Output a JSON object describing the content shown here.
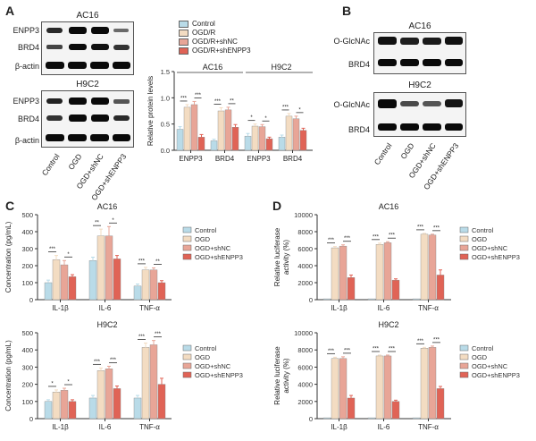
{
  "panels": {
    "A": "A",
    "B": "B",
    "C": "C",
    "D": "D"
  },
  "colors": {
    "control": "#b9dbe8",
    "ogd": "#f3dcc2",
    "shnc": "#e8a597",
    "shenpp3": "#e06356",
    "band": "#0a0a0a"
  },
  "legend": [
    "Control",
    "OGD/R",
    "OGD/R+shNC",
    "OGD/R+shENPP3"
  ],
  "legend_cd": [
    "Control",
    "OGD",
    "OGD+shNC",
    "OGD+shENPP3"
  ],
  "blotA": {
    "groups": [
      {
        "title": "AC16",
        "rows": [
          "ENPP3",
          "BRD4",
          "β-actin"
        ]
      },
      {
        "title": "H9C2",
        "rows": [
          "ENPP3",
          "BRD4",
          "β-actin"
        ]
      }
    ],
    "lanes": [
      "Control",
      "OGD",
      "OGD+shNC",
      "OGD+shENPP3"
    ]
  },
  "blotB": {
    "groups": [
      {
        "title": "AC16",
        "rows": [
          "O-GlcNAc",
          "BRD4"
        ]
      },
      {
        "title": "H9C2",
        "rows": [
          "O-GlcNAc",
          "BRD4"
        ]
      }
    ],
    "lanes": [
      "Control",
      "OGD",
      "OGD+shNC",
      "OGD+shENPP3"
    ]
  },
  "chart_data": [
    {
      "id": "A-bar",
      "type": "bar",
      "ylabel": "Relative protein levels",
      "ylim": [
        0,
        1.5
      ],
      "yticks": [
        "0.0",
        "0.5",
        "1.0",
        "1.5"
      ],
      "categories": [
        "ENPP3",
        "BRD4",
        "ENPP3",
        "BRD4"
      ],
      "group_labels": [
        "AC16",
        "H9C2"
      ],
      "series": [
        {
          "name": "Control",
          "values": [
            0.4,
            0.18,
            0.27,
            0.25
          ],
          "errors": [
            0.05,
            0.03,
            0.05,
            0.04
          ]
        },
        {
          "name": "OGD/R",
          "values": [
            0.82,
            0.75,
            0.46,
            0.65
          ],
          "errors": [
            0.05,
            0.06,
            0.04,
            0.05
          ]
        },
        {
          "name": "OGD/R+shNC",
          "values": [
            0.87,
            0.77,
            0.45,
            0.6
          ],
          "errors": [
            0.06,
            0.05,
            0.04,
            0.05
          ]
        },
        {
          "name": "OGD/R+shENPP3",
          "values": [
            0.25,
            0.44,
            0.22,
            0.38
          ],
          "errors": [
            0.05,
            0.05,
            0.03,
            0.04
          ]
        }
      ],
      "sig": [
        [
          "***",
          "***"
        ],
        [
          "***",
          "**"
        ],
        [
          "*",
          "*"
        ],
        [
          "***",
          "*"
        ]
      ]
    },
    {
      "id": "C-AC16",
      "type": "bar",
      "title": "AC16",
      "ylabel": "Concentration (pg/mL)",
      "ylim": [
        0,
        500
      ],
      "yticks": [
        "0",
        "100",
        "200",
        "300",
        "400",
        "500"
      ],
      "categories": [
        "IL-1β",
        "IL-6",
        "TNF-α"
      ],
      "series": [
        {
          "name": "Control",
          "values": [
            100,
            230,
            80
          ],
          "errors": [
            15,
            20,
            12
          ]
        },
        {
          "name": "OGD",
          "values": [
            235,
            375,
            175
          ],
          "errors": [
            25,
            40,
            15
          ]
        },
        {
          "name": "OGD+shNC",
          "values": [
            205,
            375,
            175
          ],
          "errors": [
            25,
            55,
            12
          ]
        },
        {
          "name": "OGD+shENPP3",
          "values": [
            135,
            240,
            100
          ],
          "errors": [
            12,
            20,
            12
          ]
        }
      ],
      "sig": [
        [
          "***",
          "*"
        ],
        [
          "**",
          "*"
        ],
        [
          "***",
          "**"
        ]
      ]
    },
    {
      "id": "C-H9C2",
      "type": "bar",
      "title": "H9C2",
      "ylabel": "Concentration (pg/mL)",
      "ylim": [
        0,
        500
      ],
      "yticks": [
        "0",
        "100",
        "200",
        "300",
        "400",
        "500"
      ],
      "categories": [
        "IL-1β",
        "IL-6",
        "TNF-α"
      ],
      "series": [
        {
          "name": "Control",
          "values": [
            100,
            120,
            120
          ],
          "errors": [
            10,
            15,
            15
          ]
        },
        {
          "name": "OGD",
          "values": [
            155,
            280,
            415
          ],
          "errors": [
            12,
            15,
            25
          ]
        },
        {
          "name": "OGD+shNC",
          "values": [
            165,
            290,
            430
          ],
          "errors": [
            12,
            15,
            25
          ]
        },
        {
          "name": "OGD+shENPP3",
          "values": [
            100,
            175,
            200
          ],
          "errors": [
            10,
            15,
            35
          ]
        }
      ],
      "sig": [
        [
          "*",
          "*"
        ],
        [
          "***",
          "***"
        ],
        [
          "***",
          "***"
        ]
      ]
    },
    {
      "id": "D-AC16",
      "type": "bar",
      "title": "AC16",
      "ylabel": "Relative luciferase activity (%)",
      "ylim": [
        0,
        10000
      ],
      "yticks": [
        "0",
        "2000",
        "4000",
        "6000",
        "8000",
        "10000"
      ],
      "categories": [
        "IL-1β",
        "IL-6",
        "TNF-α"
      ],
      "series": [
        {
          "name": "Control",
          "values": [
            100,
            100,
            100
          ],
          "errors": [
            0,
            0,
            0
          ]
        },
        {
          "name": "OGD",
          "values": [
            6100,
            6500,
            7700
          ],
          "errors": [
            150,
            150,
            100
          ]
        },
        {
          "name": "OGD+shNC",
          "values": [
            6300,
            6700,
            7600
          ],
          "errors": [
            150,
            120,
            100
          ]
        },
        {
          "name": "OGD+shENPP3",
          "values": [
            2600,
            2300,
            2900
          ],
          "errors": [
            300,
            150,
            600
          ]
        }
      ],
      "sig": [
        [
          "***",
          "***"
        ],
        [
          "***",
          "***"
        ],
        [
          "***",
          "***"
        ]
      ]
    },
    {
      "id": "D-H9C2",
      "type": "bar",
      "title": "H9C2",
      "ylabel": "Relative luciferase activity (%)",
      "ylim": [
        0,
        10000
      ],
      "yticks": [
        "0",
        "2000",
        "4000",
        "6000",
        "8000",
        "10000"
      ],
      "categories": [
        "IL-1β",
        "IL-6",
        "TNF-α"
      ],
      "series": [
        {
          "name": "Control",
          "values": [
            100,
            100,
            100
          ],
          "errors": [
            0,
            0,
            0
          ]
        },
        {
          "name": "OGD",
          "values": [
            7000,
            7300,
            8200
          ],
          "errors": [
            150,
            100,
            100
          ]
        },
        {
          "name": "OGD+shNC",
          "values": [
            7000,
            7300,
            8300
          ],
          "errors": [
            200,
            100,
            150
          ]
        },
        {
          "name": "OGD+shENPP3",
          "values": [
            2400,
            2000,
            3500
          ],
          "errors": [
            300,
            150,
            250
          ]
        }
      ],
      "sig": [
        [
          "***",
          "***"
        ],
        [
          "***",
          "***"
        ],
        [
          "***",
          "***"
        ]
      ]
    }
  ]
}
